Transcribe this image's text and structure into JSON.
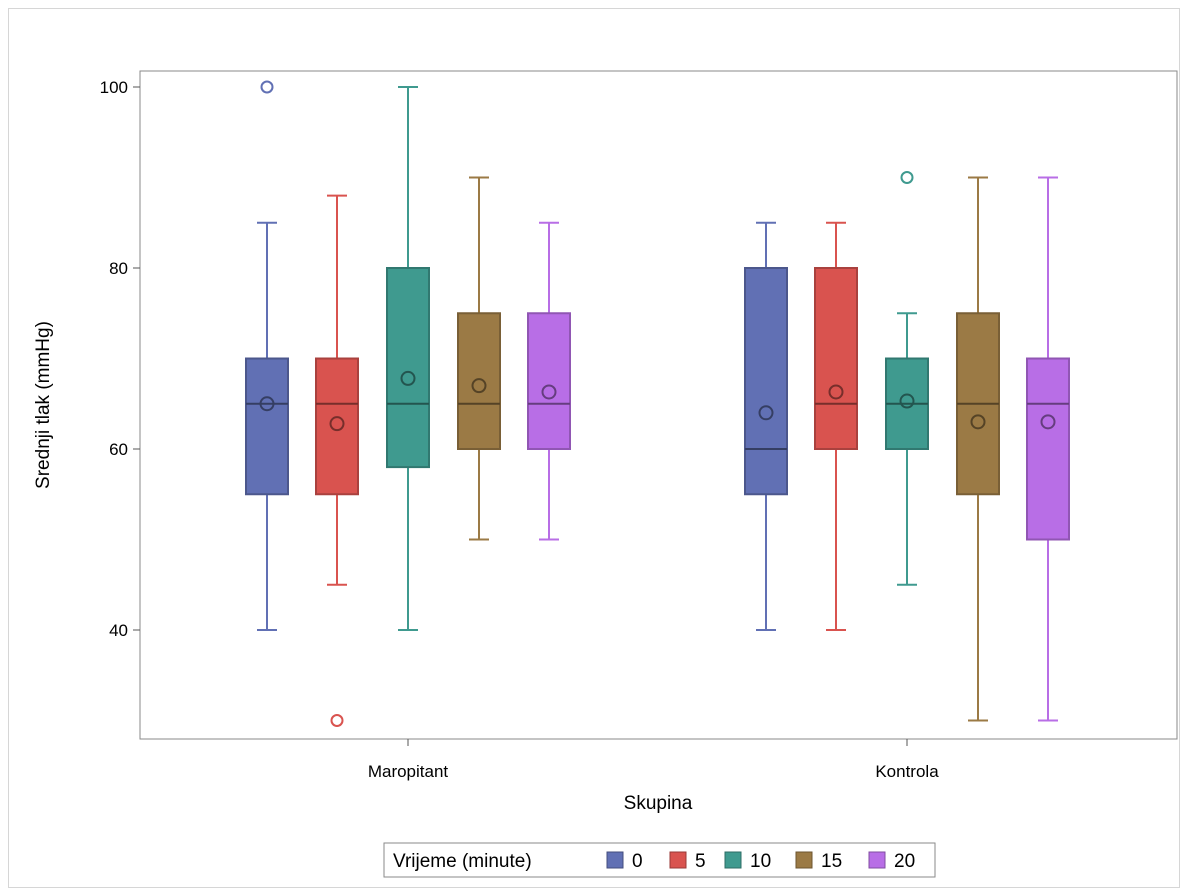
{
  "chart_data": {
    "type": "boxplot",
    "title": "",
    "xlabel": "Skupina",
    "ylabel": "Srednji tlak (mmHg)",
    "ylim": [
      28,
      102
    ],
    "yticks": [
      40,
      60,
      80,
      100
    ],
    "categories": [
      "Maropitant",
      "Kontrola"
    ],
    "grid": false,
    "legend": {
      "title": "Vrijeme (minute)",
      "placement": "bottom",
      "entries": [
        "0",
        "5",
        "10",
        "15",
        "20"
      ]
    },
    "series": [
      {
        "name": "0",
        "color": "#6170b4",
        "boxes": [
          {
            "category": "Maropitant",
            "whisker_low": 40,
            "q1": 55,
            "median": 65,
            "q3": 70,
            "whisker_high": 85,
            "mean": 65,
            "outliers": [
              100
            ]
          },
          {
            "category": "Kontrola",
            "whisker_low": 40,
            "q1": 55,
            "median": 60,
            "q3": 80,
            "whisker_high": 85,
            "mean": 64,
            "outliers": []
          }
        ]
      },
      {
        "name": "5",
        "color": "#d9534f",
        "boxes": [
          {
            "category": "Maropitant",
            "whisker_low": 45,
            "q1": 55,
            "median": 65,
            "q3": 70,
            "whisker_high": 88,
            "mean": 62.8,
            "outliers": [
              30
            ]
          },
          {
            "category": "Kontrola",
            "whisker_low": 40,
            "q1": 60,
            "median": 65,
            "q3": 80,
            "whisker_high": 85,
            "mean": 66.3,
            "outliers": []
          }
        ]
      },
      {
        "name": "10",
        "color": "#3f9a8f",
        "boxes": [
          {
            "category": "Maropitant",
            "whisker_low": 40,
            "q1": 58,
            "median": 65,
            "q3": 80,
            "whisker_high": 100,
            "mean": 67.8,
            "outliers": []
          },
          {
            "category": "Kontrola",
            "whisker_low": 45,
            "q1": 60,
            "median": 65,
            "q3": 70,
            "whisker_high": 75,
            "mean": 65.3,
            "outliers": [
              90
            ]
          }
        ]
      },
      {
        "name": "15",
        "color": "#9b7a45",
        "boxes": [
          {
            "category": "Maropitant",
            "whisker_low": 50,
            "q1": 60,
            "median": 65,
            "q3": 75,
            "whisker_high": 90,
            "mean": 67,
            "outliers": []
          },
          {
            "category": "Kontrola",
            "whisker_low": 30,
            "q1": 55,
            "median": 65,
            "q3": 75,
            "whisker_high": 90,
            "mean": 63,
            "outliers": []
          }
        ]
      },
      {
        "name": "20",
        "color": "#b86ee6",
        "boxes": [
          {
            "category": "Maropitant",
            "whisker_low": 50,
            "q1": 60,
            "median": 65,
            "q3": 75,
            "whisker_high": 85,
            "mean": 66.3,
            "outliers": []
          },
          {
            "category": "Kontrola",
            "whisker_low": 30,
            "q1": 50,
            "median": 65,
            "q3": 70,
            "whisker_high": 90,
            "mean": 63,
            "outliers": []
          }
        ]
      }
    ]
  }
}
